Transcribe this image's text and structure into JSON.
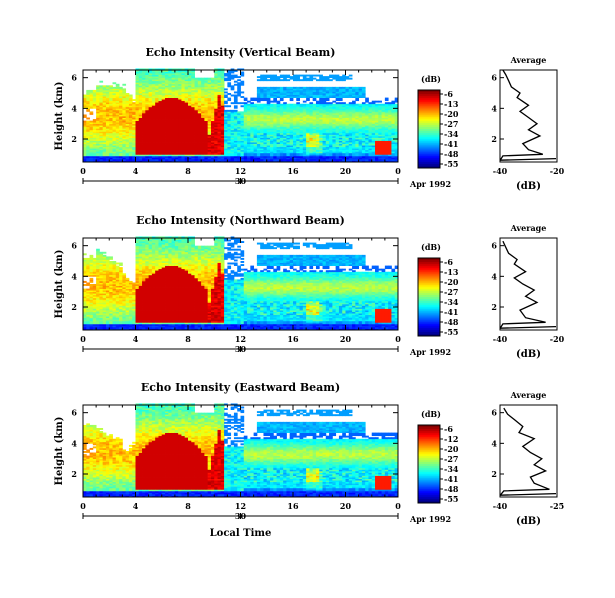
{
  "chart_data": [
    {
      "type": "heatmap",
      "title": "Echo Intensity (Vertical Beam)",
      "ylabel": "Height (km)",
      "xlim": [
        0,
        24
      ],
      "ylim": [
        0.5,
        6.5
      ],
      "x_ticks": [
        "0",
        "4",
        "8",
        "12",
        "16",
        "20",
        "0"
      ],
      "y_ticks": [
        "2",
        "4",
        "6"
      ],
      "date_ticks": [
        "30"
      ],
      "date_label": "Apr 1992",
      "colorbar": {
        "unit": "(dB)",
        "labels": [
          "-6",
          "-13",
          "-20",
          "-27",
          "-34",
          "-41",
          "-48",
          "-55"
        ]
      },
      "profile": {
        "title": "Average",
        "xlabel": "(dB)",
        "x_ticks": [
          "-40",
          "-20"
        ],
        "xlim": [
          -40,
          -20
        ],
        "points": [
          [
            -40,
            0.6
          ],
          [
            -39,
            0.9
          ],
          [
            -25,
            1.0
          ],
          [
            -30,
            1.3
          ],
          [
            -32,
            1.7
          ],
          [
            -26,
            2.2
          ],
          [
            -30,
            2.6
          ],
          [
            -27,
            3.0
          ],
          [
            -30,
            3.4
          ],
          [
            -33,
            3.8
          ],
          [
            -30,
            4.2
          ],
          [
            -34,
            4.7
          ],
          [
            -33,
            5.0
          ],
          [
            -36,
            5.4
          ],
          [
            -37,
            5.8
          ],
          [
            -38,
            6.2
          ],
          [
            -39,
            6.5
          ]
        ]
      }
    },
    {
      "type": "heatmap",
      "title": "Echo Intensity (Northward Beam)",
      "ylabel": "Height (km)",
      "xlim": [
        0,
        24
      ],
      "ylim": [
        0.5,
        6.5
      ],
      "x_ticks": [
        "0",
        "4",
        "8",
        "12",
        "16",
        "20",
        "0"
      ],
      "y_ticks": [
        "2",
        "4",
        "6"
      ],
      "date_ticks": [
        "30"
      ],
      "date_label": "Apr 1992",
      "colorbar": {
        "unit": "(dB)",
        "labels": [
          "-6",
          "-13",
          "-20",
          "-27",
          "-34",
          "-41",
          "-48",
          "-55"
        ]
      },
      "profile": {
        "title": "Average",
        "xlabel": "(dB)",
        "x_ticks": [
          "-40",
          "-20"
        ],
        "xlim": [
          -40,
          -20
        ],
        "points": [
          [
            -40,
            0.6
          ],
          [
            -39,
            0.9
          ],
          [
            -24,
            1.0
          ],
          [
            -31,
            1.3
          ],
          [
            -33,
            1.8
          ],
          [
            -27,
            2.3
          ],
          [
            -31,
            2.7
          ],
          [
            -28,
            3.1
          ],
          [
            -32,
            3.5
          ],
          [
            -35,
            3.9
          ],
          [
            -31,
            4.3
          ],
          [
            -35,
            4.8
          ],
          [
            -34,
            5.1
          ],
          [
            -37,
            5.5
          ],
          [
            -38,
            5.9
          ],
          [
            -39,
            6.3
          ]
        ]
      }
    },
    {
      "type": "heatmap",
      "title": "Echo Intensity (Eastward Beam)",
      "ylabel": "Height (km)",
      "xlabel": "Local Time",
      "xlim": [
        0,
        24
      ],
      "ylim": [
        0.5,
        6.5
      ],
      "x_ticks": [
        "0",
        "4",
        "8",
        "12",
        "16",
        "20",
        "0"
      ],
      "y_ticks": [
        "2",
        "4",
        "6"
      ],
      "date_ticks": [
        "30"
      ],
      "date_label": "Apr 1992",
      "colorbar": {
        "unit": "(dB)",
        "labels": [
          "-6",
          "-12",
          "-20",
          "-27",
          "-34",
          "-41",
          "-48",
          "-55"
        ]
      },
      "profile": {
        "title": "Average",
        "xlabel": "(dB)",
        "x_ticks": [
          "-40",
          "-25"
        ],
        "xlim": [
          -40,
          -25
        ],
        "points": [
          [
            -40,
            0.6
          ],
          [
            -39,
            0.9
          ],
          [
            -27,
            1.0
          ],
          [
            -31,
            1.4
          ],
          [
            -32,
            1.8
          ],
          [
            -28,
            2.2
          ],
          [
            -31,
            2.6
          ],
          [
            -29,
            3.0
          ],
          [
            -32,
            3.4
          ],
          [
            -34,
            3.8
          ],
          [
            -31,
            4.3
          ],
          [
            -35,
            4.7
          ],
          [
            -34,
            5.1
          ],
          [
            -36,
            5.5
          ],
          [
            -38,
            5.9
          ],
          [
            -39,
            6.3
          ]
        ]
      }
    }
  ]
}
